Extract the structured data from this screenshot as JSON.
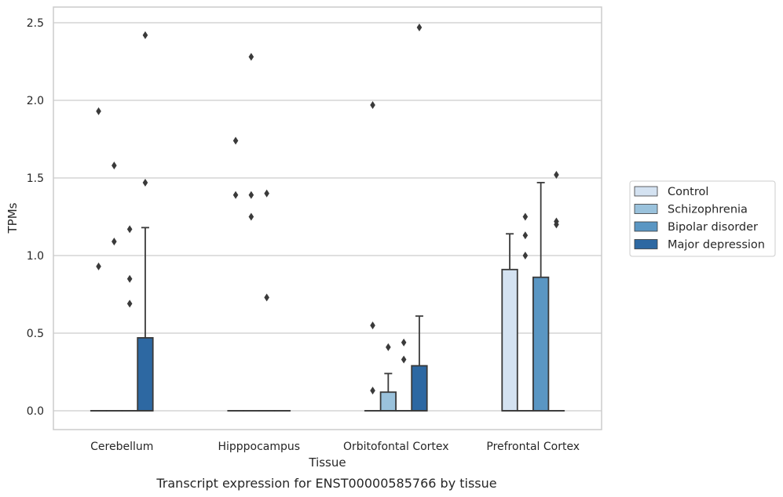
{
  "chart_data": {
    "type": "boxplot",
    "caption": "Transcript expression for ENST00000585766 by tissue",
    "xlabel": "Tissue",
    "ylabel": "TPMs",
    "ylim": [
      -0.12,
      2.6
    ],
    "yticks": [
      0.0,
      0.5,
      1.0,
      1.5,
      2.0,
      2.5
    ],
    "ytick_labels": [
      "0.0",
      "0.5",
      "1.0",
      "1.5",
      "2.0",
      "2.5"
    ],
    "grid": "horizontal",
    "legend_position": "right",
    "categories": [
      "Cerebellum",
      "Hipppocampus",
      "Orbitofontal Cortex",
      "Prefrontal Cortex"
    ],
    "series": [
      {
        "name": "Control",
        "color": "#d4e2f1",
        "boxes": [
          {
            "q1": 0,
            "median": 0,
            "q3": 0,
            "whisker_low": 0,
            "whisker_high": 0,
            "outliers": [
              0.93,
              1.93
            ]
          },
          {
            "q1": 0,
            "median": 0,
            "q3": 0,
            "whisker_low": 0,
            "whisker_high": 0,
            "outliers": [
              1.39,
              1.74
            ]
          },
          {
            "q1": 0,
            "median": 0,
            "q3": 0,
            "whisker_low": 0,
            "whisker_high": 0,
            "outliers": [
              0.13,
              0.55,
              1.97
            ]
          },
          {
            "q1": 0,
            "median": 0,
            "q3": 0.91,
            "whisker_low": 0,
            "whisker_high": 1.14,
            "outliers": []
          }
        ]
      },
      {
        "name": "Schizophrenia",
        "color": "#9ac2dc",
        "boxes": [
          {
            "q1": 0,
            "median": 0,
            "q3": 0,
            "whisker_low": 0,
            "whisker_high": 0,
            "outliers": [
              1.09,
              1.58
            ]
          },
          {
            "q1": 0,
            "median": 0,
            "q3": 0,
            "whisker_low": 0,
            "whisker_high": 0,
            "outliers": [
              1.25,
              1.39,
              2.28
            ]
          },
          {
            "q1": 0,
            "median": 0,
            "q3": 0.12,
            "whisker_low": 0,
            "whisker_high": 0.24,
            "outliers": [
              0.41
            ]
          },
          {
            "q1": 0,
            "median": 0,
            "q3": 0,
            "whisker_low": 0,
            "whisker_high": 0,
            "outliers": [
              1.0,
              1.13,
              1.25
            ]
          }
        ]
      },
      {
        "name": "Bipolar disorder",
        "color": "#5a96c3",
        "boxes": [
          {
            "q1": 0,
            "median": 0,
            "q3": 0,
            "whisker_low": 0,
            "whisker_high": 0,
            "outliers": [
              0.69,
              0.85,
              1.17
            ]
          },
          {
            "q1": 0,
            "median": 0,
            "q3": 0,
            "whisker_low": 0,
            "whisker_high": 0,
            "outliers": [
              0.73,
              1.4
            ]
          },
          {
            "q1": 0,
            "median": 0,
            "q3": 0,
            "whisker_low": 0,
            "whisker_high": 0,
            "outliers": [
              0.33,
              0.44
            ]
          },
          {
            "q1": 0,
            "median": 0,
            "q3": 0.86,
            "whisker_low": 0,
            "whisker_high": 1.47,
            "outliers": []
          }
        ]
      },
      {
        "name": "Major depression",
        "color": "#2d68a2",
        "boxes": [
          {
            "q1": 0,
            "median": 0,
            "q3": 0.47,
            "whisker_low": 0,
            "whisker_high": 1.18,
            "outliers": [
              1.47,
              2.42
            ]
          },
          {
            "q1": 0,
            "median": 0,
            "q3": 0,
            "whisker_low": 0,
            "whisker_high": 0,
            "outliers": []
          },
          {
            "q1": 0,
            "median": 0,
            "q3": 0.29,
            "whisker_low": 0,
            "whisker_high": 0.61,
            "outliers": [
              2.47
            ]
          },
          {
            "q1": 0,
            "median": 0,
            "q3": 0,
            "whisker_low": 0,
            "whisker_high": 0,
            "outliers": [
              1.2,
              1.22,
              1.52
            ]
          }
        ]
      }
    ]
  }
}
